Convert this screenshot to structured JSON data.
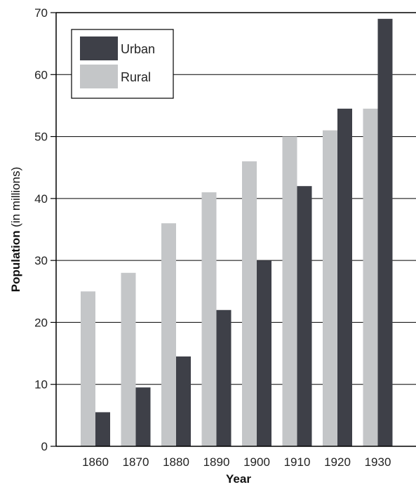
{
  "chart_data": {
    "type": "bar",
    "title": "",
    "xlabel": "Year",
    "ylabel_bold": "Population",
    "ylabel_rest": " (in millions)",
    "categories": [
      "1860",
      "1870",
      "1880",
      "1890",
      "1900",
      "1910",
      "1920",
      "1930"
    ],
    "series": [
      {
        "name": "Rural",
        "color": "#c4c6c8",
        "values": [
          25,
          28,
          36,
          41,
          46,
          50,
          51,
          54.5
        ]
      },
      {
        "name": "Urban",
        "color": "#3e4048",
        "values": [
          5.5,
          9.5,
          14.5,
          22,
          30,
          42,
          54.5,
          69
        ]
      }
    ],
    "ylim": [
      0,
      70
    ],
    "yticks": [
      "0",
      "10",
      "20",
      "30",
      "40",
      "50",
      "60",
      "70"
    ],
    "grid": true,
    "legend_position": "top-left"
  }
}
